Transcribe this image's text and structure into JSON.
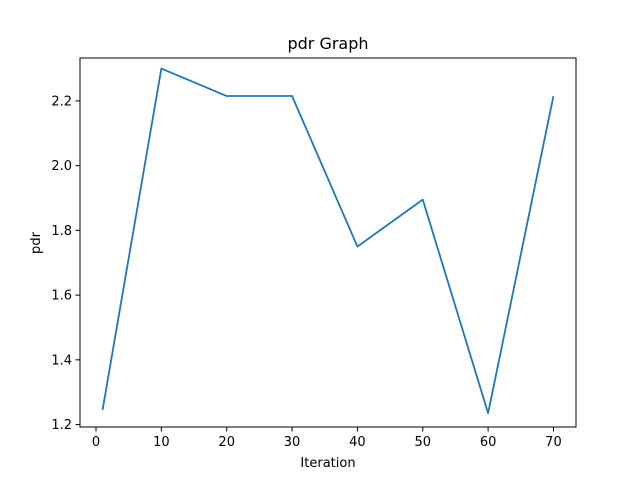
{
  "chart_data": {
    "type": "line",
    "title": "pdr Graph",
    "xlabel": "Iteration",
    "ylabel": "pdr",
    "x": [
      1,
      10,
      20,
      30,
      40,
      50,
      60,
      70
    ],
    "series": [
      {
        "values": [
          1.245,
          2.3,
          2.215,
          2.215,
          1.75,
          1.895,
          1.235,
          2.215
        ],
        "color": "#1f77b4"
      }
    ],
    "xlim": [
      -2.45,
      73.45
    ],
    "ylim": [
      1.1925,
      2.3325
    ],
    "xticks": [
      0,
      10,
      20,
      30,
      40,
      50,
      60,
      70
    ],
    "yticks": [
      1.2,
      1.4,
      1.6,
      1.8,
      2.0,
      2.2
    ],
    "xtick_labels": [
      "0",
      "10",
      "20",
      "30",
      "40",
      "50",
      "60",
      "70"
    ],
    "ytick_labels": [
      "1.2",
      "1.4",
      "1.6",
      "1.8",
      "2.0",
      "2.2"
    ],
    "grid": false,
    "legend": "none"
  }
}
